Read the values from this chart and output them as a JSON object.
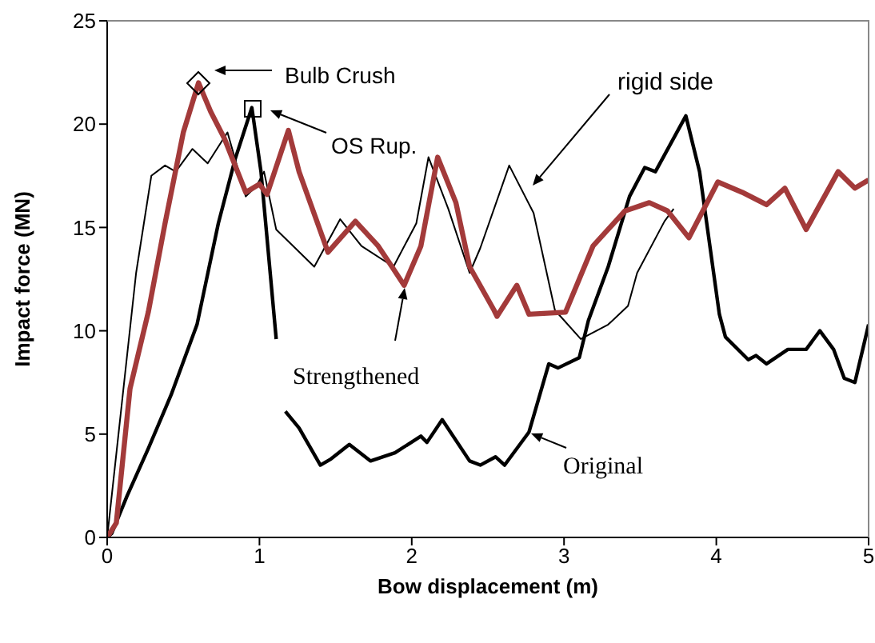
{
  "chart_data": {
    "type": "line",
    "xlabel": "Bow displacement (m)",
    "ylabel": "Impact force (MN)",
    "xlim": [
      0,
      5
    ],
    "xticks": [
      0,
      1,
      2,
      3,
      4,
      5
    ],
    "ylim": [
      0,
      25
    ],
    "yticks": [
      0,
      5,
      10,
      15,
      20,
      25
    ],
    "grid": false,
    "marker": "none",
    "line_style": "solid",
    "series": [
      {
        "color": "#000000",
        "x": [
          0,
          0.19,
          0.29,
          0.38,
          0.45,
          0.56,
          0.66,
          0.79,
          0.91,
          0.98,
          1.03,
          1.11,
          1.36,
          1.53,
          1.67,
          1.88,
          2.03,
          2.11,
          2.24,
          2.38,
          2.45,
          2.64,
          2.8,
          2.94,
          3.11,
          3.29,
          3.42,
          3.48,
          3.66,
          3.72
        ],
        "values": [
          0,
          12.8,
          17.5,
          18.0,
          17.7,
          18.8,
          18.1,
          19.6,
          16.5,
          17.0,
          17.7,
          14.9,
          13.1,
          15.4,
          14.1,
          13.1,
          15.2,
          18.4,
          15.9,
          12.8,
          14.0,
          18.0,
          15.7,
          11.0,
          9.6,
          10.3,
          11.2,
          12.8,
          15.3,
          15.9
        ]
      },
      {
        "color": "#000000",
        "x": [
          0,
          0.03,
          0.13,
          0.27,
          0.42,
          0.59,
          0.73,
          0.84,
          0.95,
          1.01,
          1.11,
          1.13,
          1.17,
          1.26,
          1.4,
          1.47,
          1.59,
          1.73,
          1.89,
          2.06,
          2.1,
          2.2,
          2.38,
          2.45,
          2.55,
          2.61,
          2.77,
          2.9,
          2.96,
          3.1,
          3.16,
          3.29,
          3.43,
          3.53,
          3.6,
          3.8,
          3.89,
          4.02,
          4.06,
          4.21,
          4.26,
          4.33,
          4.47,
          4.59,
          4.68,
          4.77,
          4.84,
          4.91,
          5.0
        ],
        "values": [
          0,
          0.2,
          2.0,
          4.3,
          6.9,
          10.3,
          15.2,
          18.3,
          20.8,
          17.7,
          9.6,
          null,
          6.1,
          5.3,
          3.5,
          3.8,
          4.5,
          3.7,
          4.1,
          4.9,
          4.6,
          5.7,
          3.7,
          3.5,
          3.9,
          3.5,
          5.1,
          8.4,
          8.2,
          8.7,
          10.5,
          13.1,
          16.5,
          17.9,
          17.7,
          20.4,
          17.7,
          10.8,
          9.7,
          8.6,
          8.8,
          8.4,
          9.1,
          9.1,
          10.0,
          9.1,
          7.7,
          7.5,
          10.3
        ]
      },
      {
        "color": "#a33a3a",
        "x": [
          0,
          0.06,
          0.15,
          0.27,
          0.38,
          0.5,
          0.6,
          0.68,
          0.77,
          0.91,
          1.0,
          1.05,
          1.19,
          1.26,
          1.45,
          1.63,
          1.78,
          1.87,
          1.95,
          2.06,
          2.17,
          2.29,
          2.38,
          2.54,
          2.56,
          2.69,
          2.77,
          3.01,
          3.19,
          3.4,
          3.56,
          3.68,
          3.82,
          4.01,
          4.17,
          4.33,
          4.45,
          4.59,
          4.8,
          4.91,
          5.0
        ],
        "values": [
          0,
          0.7,
          7.2,
          10.9,
          15.2,
          19.6,
          22.0,
          20.6,
          19.3,
          16.7,
          17.1,
          16.6,
          19.7,
          17.7,
          13.8,
          15.3,
          14.1,
          13.1,
          12.2,
          14.1,
          18.4,
          16.2,
          13.1,
          11.0,
          10.7,
          12.2,
          10.8,
          10.9,
          14.1,
          15.8,
          16.2,
          15.8,
          14.5,
          17.2,
          16.7,
          16.1,
          16.9,
          14.9,
          17.7,
          16.9,
          17.3
        ]
      }
    ],
    "annotations": [
      "Bulb Crush",
      "OS Rup.",
      "rigid side",
      "Original",
      "Strengthened"
    ]
  }
}
